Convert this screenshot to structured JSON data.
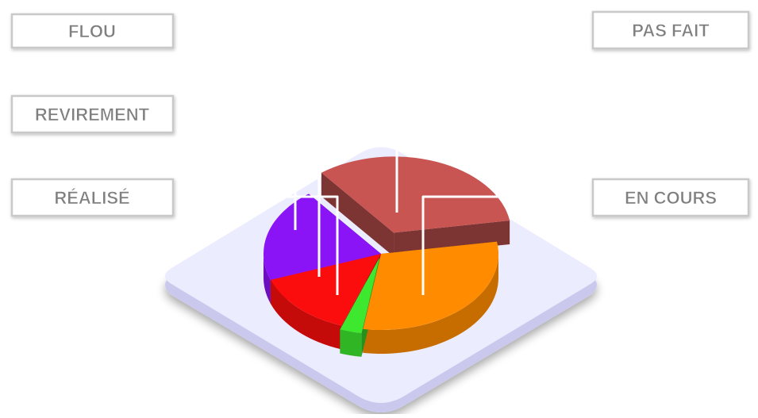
{
  "chart_data": {
    "type": "pie",
    "style": "3d-exploded",
    "categories": [
      "PAS FAIT",
      "EN COURS",
      "RÉALISÉ",
      "REVIREMENT",
      "FLOU"
    ],
    "values": [
      33,
      30,
      3,
      14,
      20
    ],
    "unit": "%",
    "colors": [
      "#c95552",
      "#ff8c00",
      "#3de82f",
      "#fc0d0d",
      "#8a14f5"
    ],
    "title": "",
    "legend": "callout-labels"
  },
  "labels": {
    "flou": "FLOU",
    "revirement": "REVIREMENT",
    "realise": "RÉALISÉ",
    "pas_fait": "PAS FAIT",
    "en_cours": "EN COURS"
  },
  "colors": {
    "platform_top": "#ececff",
    "platform_side": "#cbc8ee",
    "label_box_border": "#c9c9c9",
    "label_text": "#7f7f7f",
    "leader_line": "#ffffff"
  }
}
